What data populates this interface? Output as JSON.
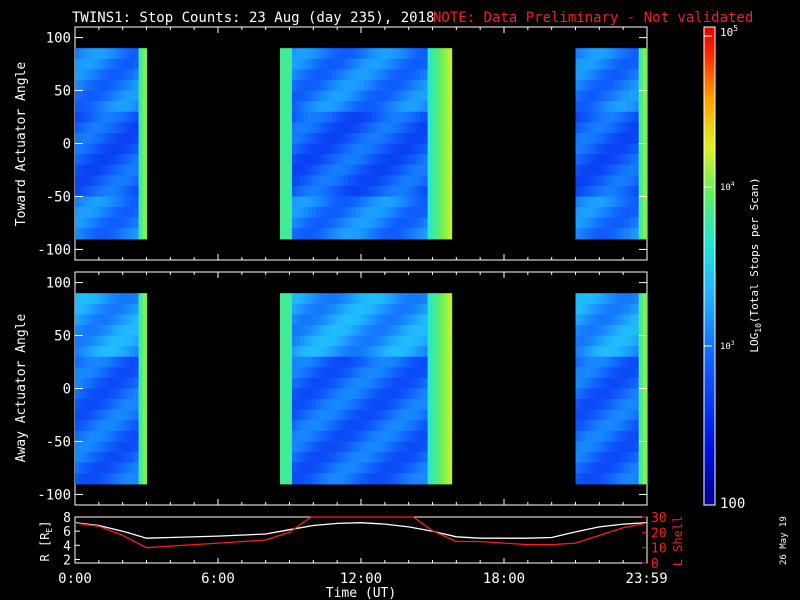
{
  "header": {
    "title": "TWINS1: Stop Counts: 23 Aug (day 235), 2018",
    "note": "NOTE: Data Preliminary - Not validated",
    "note_color": "#ff1a1a"
  },
  "panels": {
    "top_ylabel": "Toward Actuator Angle",
    "bottom_ylabel": "Away Actuator Angle"
  },
  "orbit": {
    "left_label": "R [R",
    "left_label_sub": "E",
    "left_label_tail": "]",
    "right_label": "L Shell",
    "right_color": "#ff1a1a"
  },
  "xaxis": {
    "label": "Time (UT)"
  },
  "colorbar": {
    "label_prefix": "LOG",
    "label_sub": "10",
    "label_tail": "(Total Stops per Scan)",
    "min_label": "100",
    "mid_label": "10",
    "mid_exp": "3",
    "upper_label": "10",
    "upper_exp": "4",
    "max_label": "10",
    "max_exp": "5"
  },
  "stamp": "26 May 19",
  "chart_data": [
    {
      "type": "heatmap",
      "title": "TWINS1: Stop Counts: 23 Aug (day 235), 2018",
      "ylabel": "Toward Actuator Angle",
      "xlabel": "Time (UT)",
      "xlim_hours": [
        0,
        24
      ],
      "ylim": [
        -110,
        110
      ],
      "yticks": [
        -100,
        -50,
        0,
        50,
        100
      ],
      "xtick_labels": [
        "0:00",
        "6:00",
        "12:00",
        "18:00",
        "23:59"
      ],
      "xtick_hours": [
        0,
        6,
        12,
        18,
        23.983
      ],
      "data_angle_range": [
        -90,
        90
      ],
      "colorscale": "log10 stops per scan, 100 to 100000",
      "data_intervals_hours": [
        [
          0,
          3.0
        ],
        [
          8.6,
          15.8
        ],
        [
          21.0,
          23.983
        ]
      ]
    },
    {
      "type": "heatmap",
      "ylabel": "Away Actuator Angle",
      "xlabel": "Time (UT)",
      "xlim_hours": [
        0,
        24
      ],
      "ylim": [
        -110,
        110
      ],
      "yticks": [
        -100,
        -50,
        0,
        50,
        100
      ],
      "xtick_labels": [
        "0:00",
        "6:00",
        "12:00",
        "18:00",
        "23:59"
      ],
      "data_angle_range": [
        -90,
        90
      ],
      "colorscale": "log10 stops per scan, 100 to 100000",
      "data_intervals_hours": [
        [
          0,
          3.0
        ],
        [
          8.6,
          15.8
        ],
        [
          21.0,
          23.983
        ]
      ]
    },
    {
      "type": "line",
      "xlim_hours": [
        0,
        24
      ],
      "series": [
        {
          "name": "R [RE]",
          "color": "#ffffff",
          "axis": "left",
          "ylim": [
            1.5,
            8
          ],
          "yticks": [
            2,
            4,
            6,
            8
          ],
          "x_hours": [
            0,
            1,
            2,
            3,
            4,
            6,
            8,
            9,
            10,
            11,
            12,
            13,
            14,
            15,
            16,
            17,
            18,
            19,
            20,
            21,
            22,
            23,
            23.983
          ],
          "values": [
            7.2,
            6.8,
            6.0,
            5.0,
            5.1,
            5.3,
            5.6,
            6.2,
            6.8,
            7.1,
            7.2,
            7.0,
            6.6,
            6.0,
            5.2,
            5.0,
            5.0,
            5.0,
            5.1,
            5.9,
            6.6,
            7.0,
            7.2
          ]
        },
        {
          "name": "L Shell",
          "color": "#ff1a1a",
          "axis": "right",
          "ylim": [
            0,
            30
          ],
          "yticks": [
            0,
            10,
            20,
            30
          ],
          "x_hours": [
            0,
            1,
            2,
            3,
            4,
            6,
            8,
            9,
            9.9,
            14.2,
            15,
            16,
            17,
            18,
            19,
            20,
            21,
            22,
            23,
            23.983
          ],
          "values": [
            26,
            24,
            18,
            10,
            11,
            13,
            15,
            20,
            30,
            30,
            21,
            14,
            14,
            13,
            12,
            12,
            13,
            18,
            23,
            26
          ]
        }
      ]
    }
  ]
}
